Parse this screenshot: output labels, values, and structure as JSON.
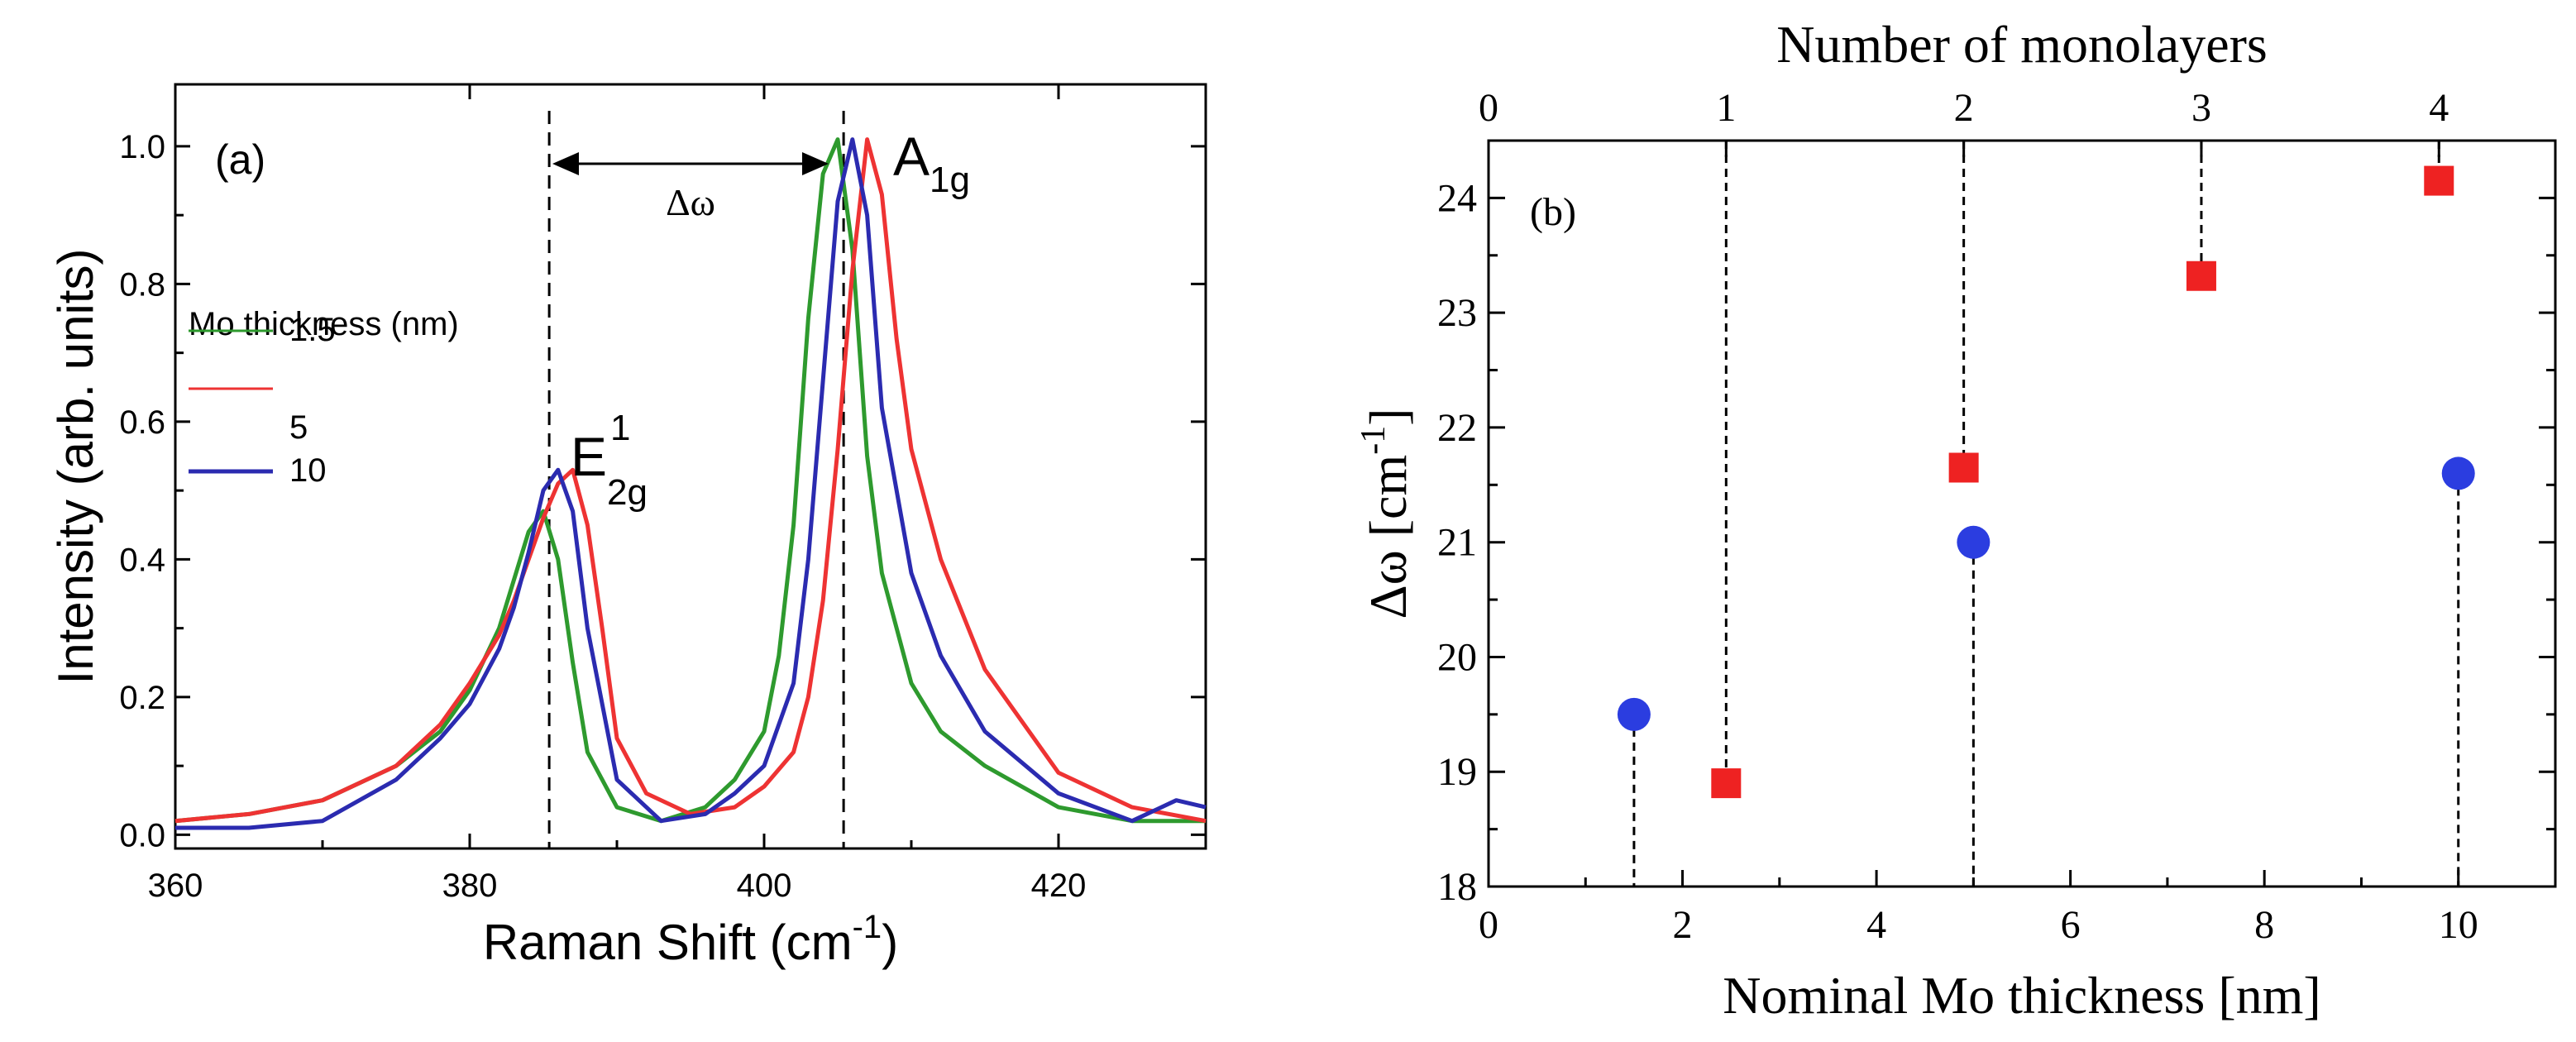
{
  "chart_data": [
    {
      "type": "line",
      "panel_label": "(a)",
      "xlabel": "Raman Shift",
      "xlabel_unit": "(cm",
      "xlabel_unit_sup": "-1",
      "xlabel_unit_close": ")",
      "ylabel": "Intensity  (arb. units)",
      "xlim": [
        360,
        430
      ],
      "ylim": [
        -0.02,
        1.09
      ],
      "xticks": [
        360,
        380,
        400,
        420
      ],
      "yticks": [
        0.0,
        0.2,
        0.4,
        0.6,
        0.8,
        1.0
      ],
      "ytick_labels": [
        "0.0",
        "0.2",
        "0.4",
        "0.6",
        "0.8",
        "1.0"
      ],
      "legend_title": "Mo thickness (nm)",
      "legend_position": "left",
      "annotations": {
        "delta": "Δω",
        "e_main": "E",
        "e_sup": "1",
        "e_sub": "2g",
        "a_main": "A",
        "a_sub": "1g"
      },
      "vlines": [
        385.4,
        405.4
      ],
      "series": [
        {
          "name": "1.5",
          "color": "#2e9a2e",
          "x": [
            360,
            365,
            370,
            375,
            378,
            380,
            382,
            383,
            384,
            385,
            386,
            387,
            388,
            390,
            393,
            396,
            398,
            400,
            401,
            402,
            403,
            404,
            405,
            406,
            407,
            408,
            410,
            412,
            415,
            420,
            425,
            430
          ],
          "y": [
            0.02,
            0.03,
            0.05,
            0.1,
            0.15,
            0.21,
            0.3,
            0.37,
            0.44,
            0.47,
            0.4,
            0.25,
            0.12,
            0.04,
            0.02,
            0.04,
            0.08,
            0.15,
            0.26,
            0.45,
            0.75,
            0.96,
            1.01,
            0.85,
            0.55,
            0.38,
            0.22,
            0.15,
            0.1,
            0.04,
            0.02,
            0.02
          ]
        },
        {
          "name": "5",
          "color": "#ee3333",
          "x": [
            360,
            365,
            370,
            375,
            378,
            380,
            382,
            383,
            384,
            385,
            386,
            387,
            388,
            389,
            390,
            392,
            395,
            398,
            400,
            402,
            403,
            404,
            405,
            406,
            407,
            408,
            409,
            410,
            412,
            415,
            420,
            425,
            430
          ],
          "y": [
            0.02,
            0.03,
            0.05,
            0.1,
            0.16,
            0.22,
            0.29,
            0.34,
            0.4,
            0.46,
            0.51,
            0.53,
            0.45,
            0.3,
            0.14,
            0.06,
            0.03,
            0.04,
            0.07,
            0.12,
            0.2,
            0.34,
            0.56,
            0.82,
            1.01,
            0.93,
            0.72,
            0.56,
            0.4,
            0.24,
            0.09,
            0.04,
            0.02
          ]
        },
        {
          "name": "10",
          "color": "#2b2bb0",
          "x": [
            360,
            365,
            370,
            375,
            378,
            380,
            382,
            383,
            384,
            385,
            386,
            387,
            388,
            390,
            393,
            396,
            398,
            400,
            402,
            403,
            404,
            405,
            406,
            407,
            408,
            410,
            412,
            415,
            420,
            425,
            428,
            430
          ],
          "y": [
            0.01,
            0.01,
            0.02,
            0.08,
            0.14,
            0.19,
            0.27,
            0.33,
            0.41,
            0.5,
            0.53,
            0.47,
            0.3,
            0.08,
            0.02,
            0.03,
            0.06,
            0.1,
            0.22,
            0.4,
            0.66,
            0.92,
            1.01,
            0.9,
            0.62,
            0.38,
            0.26,
            0.15,
            0.06,
            0.02,
            0.05,
            0.04
          ]
        }
      ]
    },
    {
      "type": "scatter",
      "panel_label": "(b)",
      "xlabel": "Nominal Mo thickness  [nm]",
      "ylabel_main": "Δω  [cm",
      "ylabel_sup": "-1",
      "ylabel_close": "]",
      "top_xlabel": "Number of monolayers",
      "xlim": [
        0,
        11
      ],
      "ylim": [
        18,
        24.5
      ],
      "xticks": [
        0,
        2,
        4,
        6,
        8,
        10
      ],
      "yticks": [
        18,
        19,
        20,
        21,
        22,
        23,
        24
      ],
      "top_ticks": [
        {
          "label": "0",
          "pos": 0
        },
        {
          "label": "1",
          "pos": 2.45
        },
        {
          "label": "2",
          "pos": 4.9
        },
        {
          "label": "3",
          "pos": 7.35
        },
        {
          "label": "4",
          "pos": 9.8
        }
      ],
      "series": [
        {
          "marker": "circle",
          "color": "#2b3de0",
          "points": [
            {
              "x": 1.5,
              "y": 19.5
            },
            {
              "x": 5.0,
              "y": 21.0
            },
            {
              "x": 10.0,
              "y": 21.6
            }
          ]
        },
        {
          "marker": "square",
          "color": "#ee2222",
          "points": [
            {
              "x": 2.45,
              "y": 18.9
            },
            {
              "x": 4.9,
              "y": 21.65
            },
            {
              "x": 7.35,
              "y": 23.32
            },
            {
              "x": 9.8,
              "y": 24.15
            }
          ]
        }
      ]
    }
  ]
}
